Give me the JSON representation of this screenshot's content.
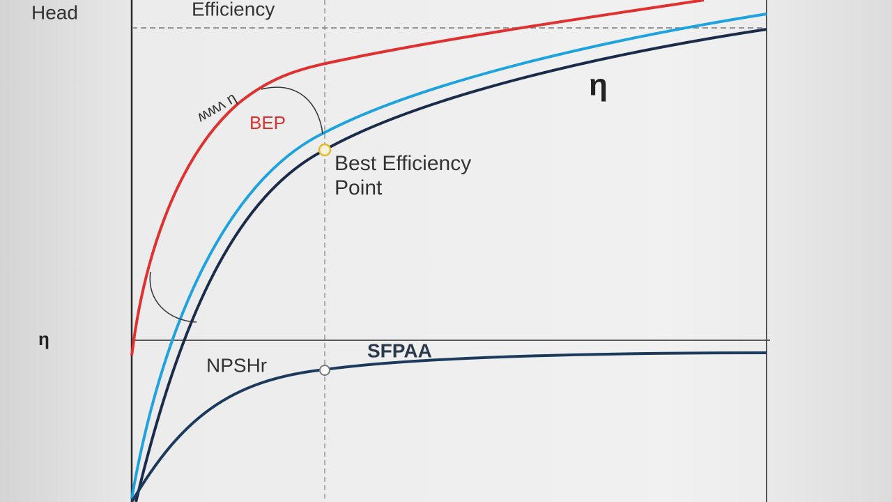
{
  "labels": {
    "head": "Head",
    "efficiency": "Efficiency",
    "eta_left": "η",
    "eta_right": "η",
    "scribble": "ʍʍʌ η",
    "bep": "BEP",
    "best_efficiency_line1": "Best Efficiency",
    "best_efficiency_line2": "Point",
    "npshr": "NPSHr",
    "sfpaa": "SFPAA"
  }
}
